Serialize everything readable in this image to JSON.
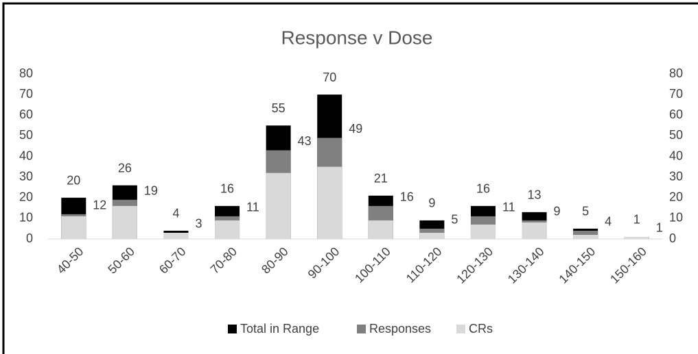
{
  "chart_data": {
    "type": "bar",
    "mode": "overlap",
    "title": "Response v Dose",
    "categories": [
      "40-50",
      "50-60",
      "60-70",
      "70-80",
      "80-90",
      "90-100",
      "100-110",
      "110-120",
      "120-130",
      "130-140",
      "140-150",
      "150-160"
    ],
    "series": [
      {
        "name": "Total in Range",
        "color": "#000000",
        "axis": "y2",
        "data_labels": "above",
        "values": [
          20,
          26,
          4,
          16,
          55,
          70,
          21,
          9,
          16,
          13,
          5,
          1
        ]
      },
      {
        "name": "Responses",
        "color": "#808080",
        "data_labels": "right",
        "values": [
          12,
          19,
          3,
          11,
          43,
          49,
          16,
          5,
          11,
          9,
          4,
          1
        ]
      },
      {
        "name": "CRs",
        "color": "#d9d9d9",
        "values": [
          11,
          16,
          3,
          9,
          32,
          35,
          9,
          3,
          7,
          8,
          2,
          1
        ]
      }
    ],
    "ylim": [
      0,
      80
    ],
    "yticks": [
      0,
      10,
      20,
      30,
      40,
      50,
      60,
      70,
      80
    ],
    "y2lim": [
      0,
      80
    ],
    "y2ticks": [
      0,
      10,
      20,
      30,
      40,
      50,
      60,
      70,
      80
    ],
    "grid": false,
    "legend": "bottom"
  }
}
